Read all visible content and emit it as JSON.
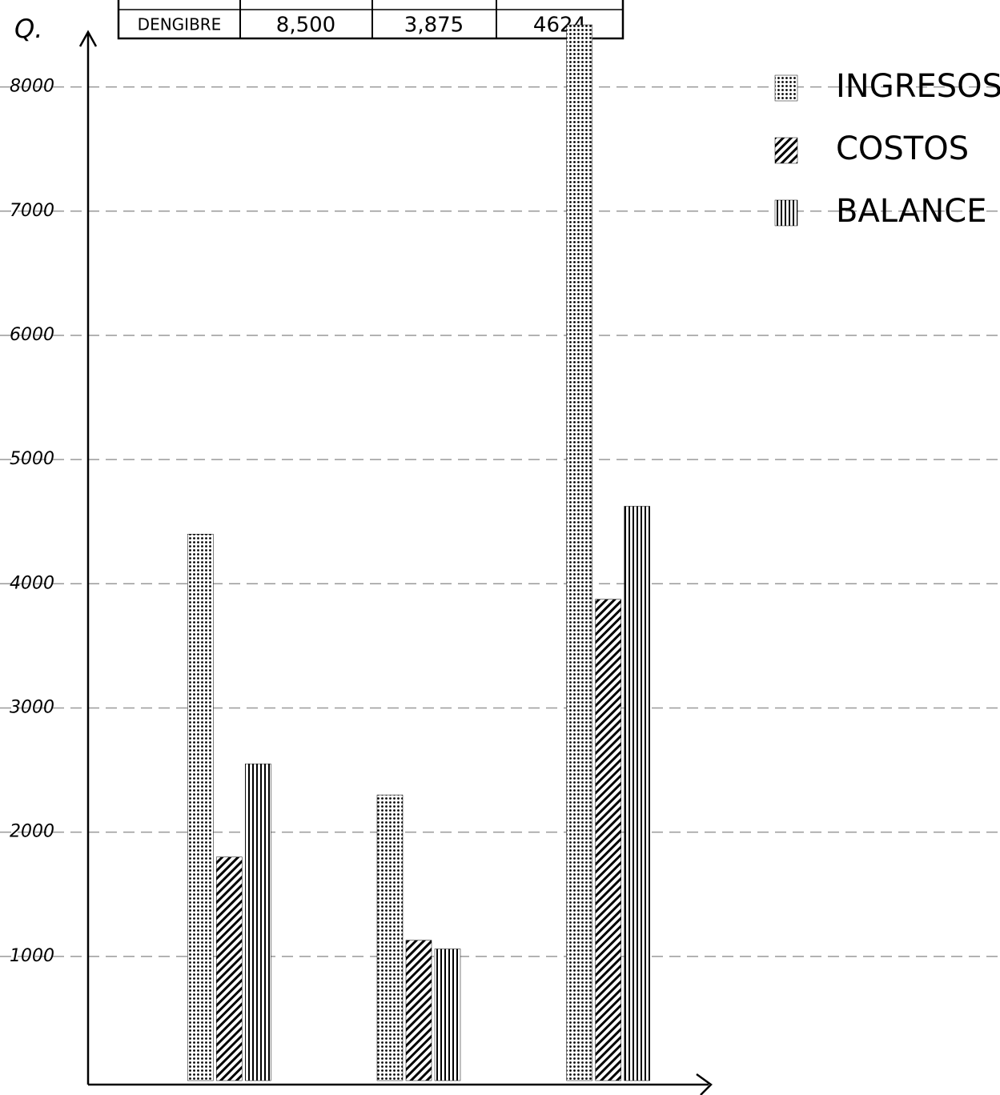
{
  "table": {
    "rows": [
      [
        "DENGIBRE",
        "8,500",
        "3,875",
        "4624"
      ]
    ]
  },
  "chart_data": {
    "type": "bar",
    "y_label": "Q.",
    "categories": [
      null,
      null,
      null
    ],
    "series": [
      {
        "name": "INGRESOS",
        "color": "#000000",
        "pattern": "dots",
        "values": [
          4400,
          2300,
          8500
        ]
      },
      {
        "name": "COSTOS",
        "color": "#000000",
        "pattern": "hatch",
        "values": [
          1800,
          1130,
          3875
        ]
      },
      {
        "name": "BALANCE",
        "color": "#000000",
        "pattern": "vertical",
        "values": [
          2550,
          1060,
          4624
        ]
      }
    ],
    "ylim": [
      0,
      8700
    ],
    "yticks": [
      {
        "value": 1000,
        "label": "1000"
      },
      2000,
      3000,
      4000,
      5000,
      6000,
      7000,
      8000
    ],
    "grid": true,
    "legend": "upper right"
  }
}
